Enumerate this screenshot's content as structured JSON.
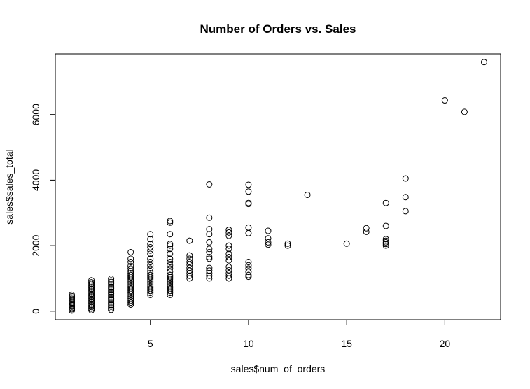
{
  "chart_data": {
    "type": "scatter",
    "title": "Number of Orders vs. Sales",
    "xlabel": "sales$num_of_orders",
    "ylabel": "sales$sales_total",
    "xlim": [
      0.16,
      22.84
    ],
    "ylim": [
      -260,
      7850
    ],
    "xticks": [
      5,
      10,
      15,
      20
    ],
    "yticks": [
      0,
      2000,
      4000,
      6000
    ],
    "grid": false,
    "legend": "none",
    "marker": "open-circle",
    "point_color": "#000000",
    "series": [
      {
        "points": [
          [
            1,
            20
          ],
          [
            1,
            60
          ],
          [
            1,
            100
          ],
          [
            1,
            140
          ],
          [
            1,
            180
          ],
          [
            1,
            220
          ],
          [
            1,
            260
          ],
          [
            1,
            300
          ],
          [
            1,
            340
          ],
          [
            1,
            380
          ],
          [
            1,
            420
          ],
          [
            1,
            460
          ],
          [
            1,
            500
          ],
          [
            2,
            30
          ],
          [
            2,
            80
          ],
          [
            2,
            130
          ],
          [
            2,
            180
          ],
          [
            2,
            230
          ],
          [
            2,
            280
          ],
          [
            2,
            330
          ],
          [
            2,
            380
          ],
          [
            2,
            430
          ],
          [
            2,
            480
          ],
          [
            2,
            530
          ],
          [
            2,
            580
          ],
          [
            2,
            630
          ],
          [
            2,
            680
          ],
          [
            2,
            730
          ],
          [
            2,
            780
          ],
          [
            2,
            830
          ],
          [
            2,
            880
          ],
          [
            2,
            940
          ],
          [
            3,
            40
          ],
          [
            3,
            90
          ],
          [
            3,
            140
          ],
          [
            3,
            190
          ],
          [
            3,
            240
          ],
          [
            3,
            290
          ],
          [
            3,
            340
          ],
          [
            3,
            390
          ],
          [
            3,
            440
          ],
          [
            3,
            490
          ],
          [
            3,
            540
          ],
          [
            3,
            590
          ],
          [
            3,
            640
          ],
          [
            3,
            690
          ],
          [
            3,
            740
          ],
          [
            3,
            790
          ],
          [
            3,
            840
          ],
          [
            3,
            890
          ],
          [
            3,
            940
          ],
          [
            3,
            990
          ],
          [
            4,
            200
          ],
          [
            4,
            260
          ],
          [
            4,
            320
          ],
          [
            4,
            380
          ],
          [
            4,
            440
          ],
          [
            4,
            500
          ],
          [
            4,
            560
          ],
          [
            4,
            620
          ],
          [
            4,
            680
          ],
          [
            4,
            740
          ],
          [
            4,
            800
          ],
          [
            4,
            860
          ],
          [
            4,
            920
          ],
          [
            4,
            980
          ],
          [
            4,
            1040
          ],
          [
            4,
            1100
          ],
          [
            4,
            1160
          ],
          [
            4,
            1220
          ],
          [
            4,
            1300
          ],
          [
            4,
            1380
          ],
          [
            4,
            1500
          ],
          [
            4,
            1600
          ],
          [
            4,
            1800
          ],
          [
            5,
            500
          ],
          [
            5,
            560
          ],
          [
            5,
            620
          ],
          [
            5,
            680
          ],
          [
            5,
            740
          ],
          [
            5,
            800
          ],
          [
            5,
            860
          ],
          [
            5,
            920
          ],
          [
            5,
            980
          ],
          [
            5,
            1040
          ],
          [
            5,
            1100
          ],
          [
            5,
            1160
          ],
          [
            5,
            1220
          ],
          [
            5,
            1300
          ],
          [
            5,
            1400
          ],
          [
            5,
            1500
          ],
          [
            5,
            1600
          ],
          [
            5,
            1750
          ],
          [
            5,
            1850
          ],
          [
            5,
            1950
          ],
          [
            5,
            2050
          ],
          [
            5,
            2200
          ],
          [
            5,
            2350
          ],
          [
            6,
            500
          ],
          [
            6,
            560
          ],
          [
            6,
            620
          ],
          [
            6,
            680
          ],
          [
            6,
            740
          ],
          [
            6,
            800
          ],
          [
            6,
            860
          ],
          [
            6,
            920
          ],
          [
            6,
            980
          ],
          [
            6,
            1040
          ],
          [
            6,
            1100
          ],
          [
            6,
            1200
          ],
          [
            6,
            1300
          ],
          [
            6,
            1400
          ],
          [
            6,
            1500
          ],
          [
            6,
            1600
          ],
          [
            6,
            1750
          ],
          [
            6,
            1900
          ],
          [
            6,
            2000
          ],
          [
            6,
            2050
          ],
          [
            6,
            2350
          ],
          [
            6,
            2700
          ],
          [
            6,
            2750
          ],
          [
            7,
            1000
          ],
          [
            7,
            1080
          ],
          [
            7,
            1160
          ],
          [
            7,
            1240
          ],
          [
            7,
            1320
          ],
          [
            7,
            1420
          ],
          [
            7,
            1500
          ],
          [
            7,
            1600
          ],
          [
            7,
            1700
          ],
          [
            7,
            2150
          ],
          [
            8,
            1000
          ],
          [
            8,
            1080
          ],
          [
            8,
            1160
          ],
          [
            8,
            1240
          ],
          [
            8,
            1320
          ],
          [
            8,
            1600
          ],
          [
            8,
            1650
          ],
          [
            8,
            1800
          ],
          [
            8,
            1900
          ],
          [
            8,
            2100
          ],
          [
            8,
            2350
          ],
          [
            8,
            2500
          ],
          [
            8,
            2850
          ],
          [
            8,
            3870
          ],
          [
            9,
            1000
          ],
          [
            9,
            1080
          ],
          [
            9,
            1160
          ],
          [
            9,
            1250
          ],
          [
            9,
            1350
          ],
          [
            9,
            1550
          ],
          [
            9,
            1650
          ],
          [
            9,
            1750
          ],
          [
            9,
            1900
          ],
          [
            9,
            2000
          ],
          [
            9,
            2300
          ],
          [
            9,
            2400
          ],
          [
            9,
            2480
          ],
          [
            10,
            1050
          ],
          [
            10,
            1100
          ],
          [
            10,
            1200
          ],
          [
            10,
            1300
          ],
          [
            10,
            1400
          ],
          [
            10,
            1500
          ],
          [
            10,
            2380
          ],
          [
            10,
            2550
          ],
          [
            10,
            3270
          ],
          [
            10,
            3300
          ],
          [
            10,
            3650
          ],
          [
            10,
            3860
          ],
          [
            11,
            2030
          ],
          [
            11,
            2100
          ],
          [
            11,
            2220
          ],
          [
            11,
            2450
          ],
          [
            12,
            2000
          ],
          [
            12,
            2060
          ],
          [
            13,
            3550
          ],
          [
            15,
            2060
          ],
          [
            16,
            2420
          ],
          [
            16,
            2530
          ],
          [
            17,
            2000
          ],
          [
            17,
            2050
          ],
          [
            17,
            2100
          ],
          [
            17,
            2150
          ],
          [
            17,
            2200
          ],
          [
            17,
            2600
          ],
          [
            17,
            3300
          ],
          [
            18,
            3050
          ],
          [
            18,
            3480
          ],
          [
            18,
            4050
          ],
          [
            20,
            6430
          ],
          [
            21,
            6080
          ],
          [
            22,
            7600
          ]
        ]
      }
    ]
  }
}
